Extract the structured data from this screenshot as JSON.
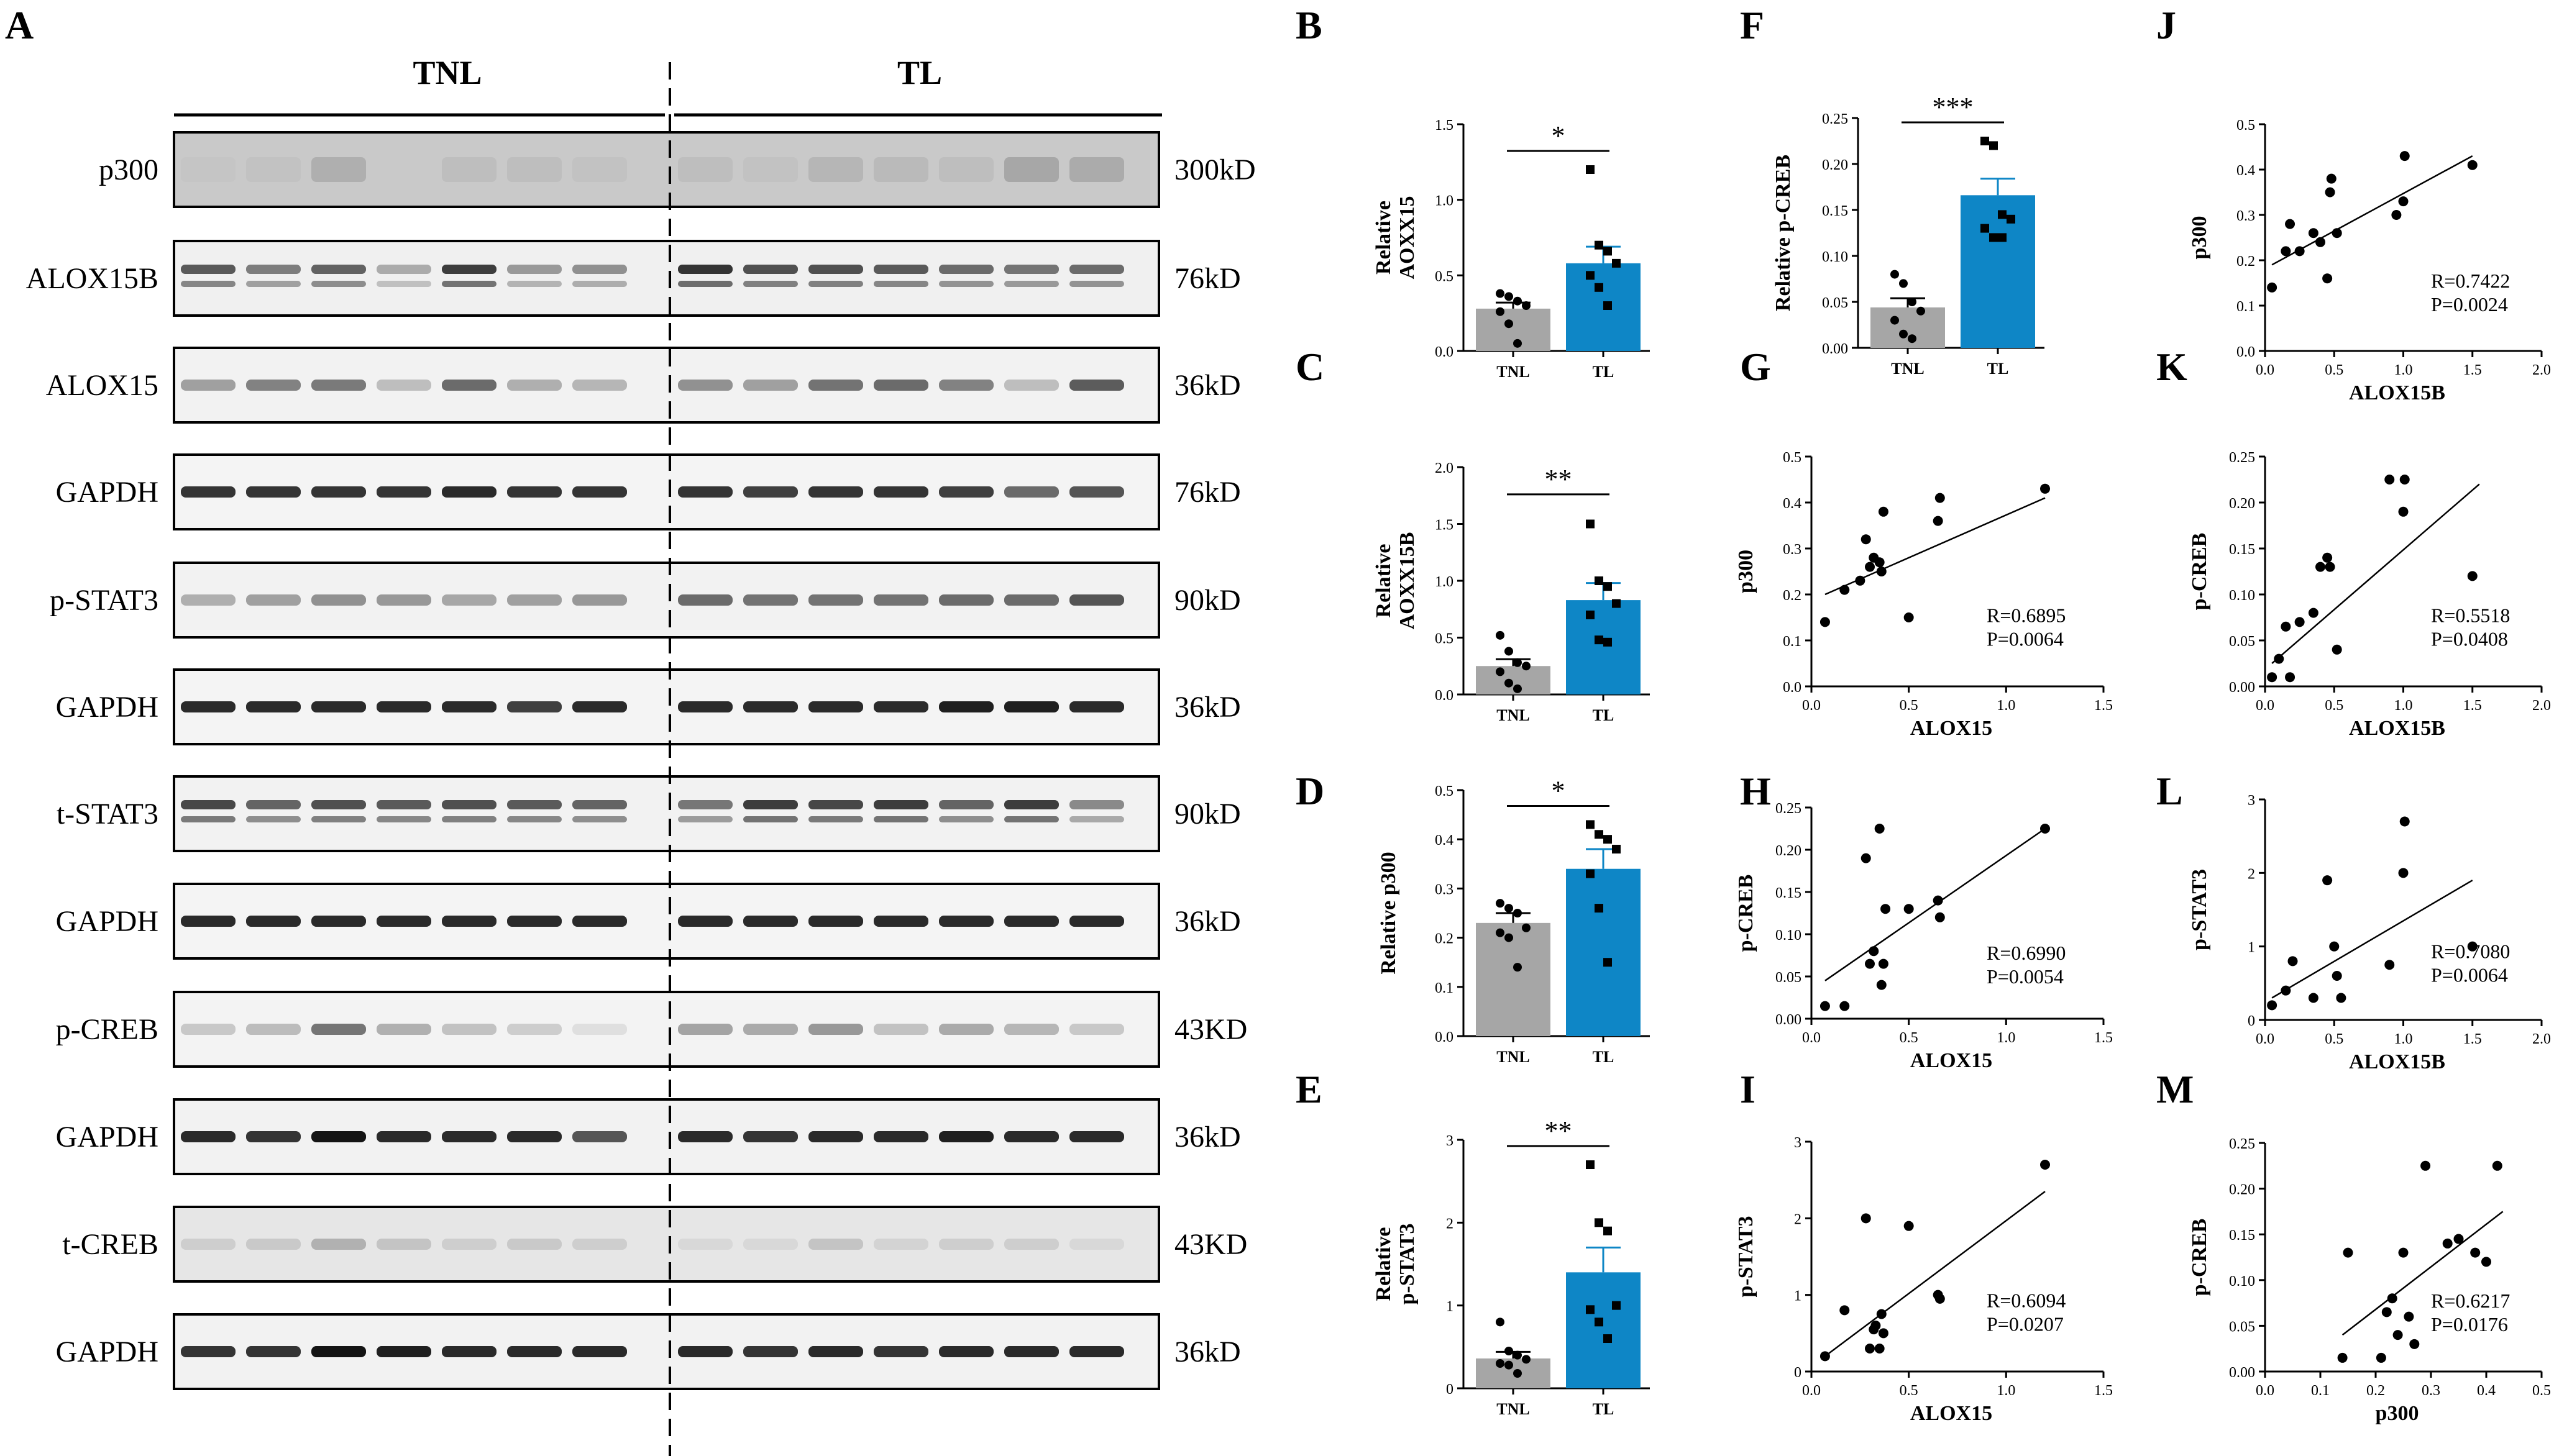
{
  "panel_A": {
    "letter": "A",
    "groups": [
      "TNL",
      "TL"
    ],
    "blots": [
      {
        "label": "p300",
        "kd": "300kD"
      },
      {
        "label": "ALOX15B",
        "kd": "76kD"
      },
      {
        "label": "ALOX15",
        "kd": "36kD"
      },
      {
        "label": "GAPDH",
        "kd": "76kD"
      },
      {
        "label": "p-STAT3",
        "kd": "90kD"
      },
      {
        "label": "GAPDH",
        "kd": "36kD"
      },
      {
        "label": "t-STAT3",
        "kd": "90kD"
      },
      {
        "label": "GAPDH",
        "kd": "36kD"
      },
      {
        "label": "p-CREB",
        "kd": "43KD"
      },
      {
        "label": "GAPDH",
        "kd": "36kD"
      },
      {
        "label": "t-CREB",
        "kd": "43KD"
      },
      {
        "label": "GAPDH",
        "kd": "36kD"
      }
    ]
  },
  "colors": {
    "tnl_bar": "#A6A6A6",
    "tl_bar": "#0E86C6",
    "tl_err": "#0E86C6",
    "tnl_err": "#000000"
  },
  "chart_data": [
    {
      "panel": "B",
      "type": "bar",
      "ylabel": "Relative AOXX15",
      "categories": [
        "TNL",
        "TL"
      ],
      "values": [
        0.28,
        0.58
      ],
      "errors": [
        0.04,
        0.11
      ],
      "ylim": [
        0,
        1.5
      ],
      "yticks": [
        0.0,
        0.5,
        1.0,
        1.5
      ],
      "significance": "*",
      "points": [
        [
          0.38,
          0.36,
          0.33,
          0.3,
          0.26,
          0.18,
          0.05
        ],
        [
          1.2,
          0.7,
          0.66,
          0.58,
          0.5,
          0.42,
          0.3
        ]
      ]
    },
    {
      "panel": "C",
      "type": "bar",
      "ylabel": "Relative AOXX15B",
      "categories": [
        "TNL",
        "TL"
      ],
      "values": [
        0.25,
        0.83
      ],
      "errors": [
        0.06,
        0.15
      ],
      "ylim": [
        0,
        2.0
      ],
      "yticks": [
        0.0,
        0.5,
        1.0,
        1.5,
        2.0
      ],
      "significance": "**",
      "points": [
        [
          0.52,
          0.38,
          0.28,
          0.25,
          0.2,
          0.1,
          0.05
        ],
        [
          1.5,
          1.0,
          0.95,
          0.8,
          0.7,
          0.48,
          0.46
        ]
      ]
    },
    {
      "panel": "D",
      "type": "bar",
      "ylabel": "Relative p300",
      "categories": [
        "TNL",
        "TL"
      ],
      "values": [
        0.23,
        0.34
      ],
      "errors": [
        0.02,
        0.04
      ],
      "ylim": [
        0,
        0.5
      ],
      "yticks": [
        0.0,
        0.1,
        0.2,
        0.3,
        0.4,
        0.5
      ],
      "significance": "*",
      "points": [
        [
          0.27,
          0.26,
          0.25,
          0.22,
          0.21,
          0.2,
          0.14
        ],
        [
          0.43,
          0.41,
          0.4,
          0.38,
          0.33,
          0.26,
          0.15
        ]
      ]
    },
    {
      "panel": "E",
      "type": "bar",
      "ylabel": "Relative p-STAT3",
      "categories": [
        "TNL",
        "TL"
      ],
      "values": [
        0.36,
        1.4
      ],
      "errors": [
        0.08,
        0.3
      ],
      "ylim": [
        0,
        3
      ],
      "yticks": [
        0,
        1,
        2,
        3
      ],
      "significance": "**",
      "points": [
        [
          0.8,
          0.45,
          0.4,
          0.35,
          0.3,
          0.28,
          0.18
        ],
        [
          2.7,
          2.0,
          1.9,
          1.0,
          0.95,
          0.8,
          0.6
        ]
      ]
    },
    {
      "panel": "F",
      "type": "bar",
      "ylabel": "Relative p-CREB",
      "categories": [
        "TNL",
        "TL"
      ],
      "values": [
        0.044,
        0.166
      ],
      "errors": [
        0.01,
        0.018
      ],
      "ylim": [
        0,
        0.25
      ],
      "yticks": [
        0.0,
        0.05,
        0.1,
        0.15,
        0.2,
        0.25
      ],
      "significance": "***",
      "points": [
        [
          0.08,
          0.07,
          0.05,
          0.04,
          0.03,
          0.015,
          0.01
        ],
        [
          0.225,
          0.22,
          0.145,
          0.14,
          0.13,
          0.12,
          0.12
        ]
      ]
    },
    {
      "panel": "G",
      "type": "scatter",
      "xlabel": "ALOX15",
      "ylabel": "p300",
      "xlim": [
        0,
        1.5
      ],
      "ylim": [
        0,
        0.5
      ],
      "xticks": [
        0.0,
        0.5,
        1.0,
        1.5
      ],
      "yticks": [
        0.0,
        0.1,
        0.2,
        0.3,
        0.4,
        0.5
      ],
      "x": [
        0.07,
        0.17,
        0.25,
        0.28,
        0.3,
        0.32,
        0.35,
        0.36,
        0.37,
        0.5,
        0.65,
        0.66,
        1.2
      ],
      "y": [
        0.14,
        0.21,
        0.23,
        0.32,
        0.26,
        0.28,
        0.27,
        0.25,
        0.38,
        0.15,
        0.36,
        0.41,
        0.43
      ],
      "fit": [
        [
          0.07,
          0.2
        ],
        [
          1.2,
          0.41
        ]
      ],
      "stats": [
        "R=0.6895",
        "P=0.0064"
      ]
    },
    {
      "panel": "H",
      "type": "scatter",
      "xlabel": "ALOX15",
      "ylabel": "p-CREB",
      "xlim": [
        0,
        1.5
      ],
      "ylim": [
        0,
        0.25
      ],
      "xticks": [
        0.0,
        0.5,
        1.0,
        1.5
      ],
      "yticks": [
        0.0,
        0.05,
        0.1,
        0.15,
        0.2,
        0.25
      ],
      "x": [
        0.07,
        0.17,
        0.28,
        0.3,
        0.32,
        0.35,
        0.36,
        0.37,
        0.38,
        0.5,
        0.65,
        0.66,
        1.2
      ],
      "y": [
        0.015,
        0.015,
        0.19,
        0.065,
        0.08,
        0.225,
        0.04,
        0.065,
        0.13,
        0.13,
        0.14,
        0.12,
        0.225
      ],
      "fit": [
        [
          0.07,
          0.045
        ],
        [
          1.2,
          0.225
        ]
      ],
      "stats": [
        "R=0.6990",
        "P=0.0054"
      ]
    },
    {
      "panel": "I",
      "type": "scatter",
      "xlabel": "ALOX15",
      "ylabel": "p-STAT3",
      "xlim": [
        0,
        1.5
      ],
      "ylim": [
        0,
        3
      ],
      "xticks": [
        0.0,
        0.5,
        1.0,
        1.5
      ],
      "yticks": [
        0,
        1,
        2,
        3
      ],
      "x": [
        0.07,
        0.17,
        0.28,
        0.3,
        0.32,
        0.33,
        0.35,
        0.36,
        0.37,
        0.5,
        0.65,
        0.66,
        1.2
      ],
      "y": [
        0.2,
        0.8,
        2.0,
        0.3,
        0.55,
        0.6,
        0.3,
        0.75,
        0.5,
        1.9,
        1.0,
        0.95,
        2.7
      ],
      "fit": [
        [
          0.07,
          0.2
        ],
        [
          1.2,
          2.35
        ]
      ],
      "stats": [
        "R=0.6094",
        "P=0.0207"
      ]
    },
    {
      "panel": "J",
      "type": "scatter",
      "xlabel": "ALOX15B",
      "ylabel": "p300",
      "xlim": [
        0,
        2.0
      ],
      "ylim": [
        0,
        0.5
      ],
      "xticks": [
        0.0,
        0.5,
        1.0,
        1.5,
        2.0
      ],
      "yticks": [
        0.0,
        0.1,
        0.2,
        0.3,
        0.4,
        0.5
      ],
      "x": [
        0.05,
        0.15,
        0.18,
        0.25,
        0.35,
        0.4,
        0.45,
        0.47,
        0.48,
        0.52,
        0.95,
        1.0,
        1.01,
        1.5
      ],
      "y": [
        0.14,
        0.22,
        0.28,
        0.22,
        0.26,
        0.24,
        0.16,
        0.35,
        0.38,
        0.26,
        0.3,
        0.33,
        0.43,
        0.41
      ],
      "fit": [
        [
          0.05,
          0.19
        ],
        [
          1.5,
          0.43
        ]
      ],
      "stats": [
        "R=0.7422",
        "P=0.0024"
      ]
    },
    {
      "panel": "K",
      "type": "scatter",
      "xlabel": "ALOX15B",
      "ylabel": "p-CREB",
      "xlim": [
        0,
        2.0
      ],
      "ylim": [
        0,
        0.25
      ],
      "xticks": [
        0.0,
        0.5,
        1.0,
        1.5,
        2.0
      ],
      "yticks": [
        0.0,
        0.05,
        0.1,
        0.15,
        0.2,
        0.25
      ],
      "x": [
        0.05,
        0.1,
        0.15,
        0.18,
        0.25,
        0.35,
        0.4,
        0.45,
        0.47,
        0.52,
        0.9,
        1.0,
        1.01,
        1.5
      ],
      "y": [
        0.01,
        0.03,
        0.065,
        0.01,
        0.07,
        0.08,
        0.13,
        0.14,
        0.13,
        0.04,
        0.225,
        0.19,
        0.225,
        0.12
      ],
      "fit": [
        [
          0.05,
          0.025
        ],
        [
          1.55,
          0.22
        ]
      ],
      "stats": [
        "R=0.5518",
        "P=0.0408"
      ]
    },
    {
      "panel": "L",
      "type": "scatter",
      "xlabel": "ALOX15B",
      "ylabel": "p-STAT3",
      "xlim": [
        0,
        2.0
      ],
      "ylim": [
        0,
        3
      ],
      "xticks": [
        0.0,
        0.5,
        1.0,
        1.5,
        2.0
      ],
      "yticks": [
        0,
        1,
        2,
        3
      ],
      "x": [
        0.05,
        0.15,
        0.2,
        0.35,
        0.45,
        0.5,
        0.52,
        0.55,
        0.9,
        1.0,
        1.01,
        1.5
      ],
      "y": [
        0.2,
        0.4,
        0.8,
        0.3,
        1.9,
        1.0,
        0.6,
        0.3,
        0.75,
        2.0,
        2.7,
        1.0
      ],
      "fit": [
        [
          0.05,
          0.3
        ],
        [
          1.5,
          1.9
        ]
      ],
      "stats": [
        "R=0.7080",
        "P=0.0064"
      ]
    },
    {
      "panel": "M",
      "type": "scatter",
      "xlabel": "p300",
      "ylabel": "p-CREB",
      "xlim": [
        0,
        0.5
      ],
      "ylim": [
        0,
        0.25
      ],
      "xticks": [
        0.0,
        0.1,
        0.2,
        0.3,
        0.4,
        0.5
      ],
      "yticks": [
        0.0,
        0.05,
        0.1,
        0.15,
        0.2,
        0.25
      ],
      "x": [
        0.14,
        0.15,
        0.21,
        0.22,
        0.23,
        0.24,
        0.25,
        0.26,
        0.27,
        0.29,
        0.33,
        0.35,
        0.38,
        0.4,
        0.42
      ],
      "y": [
        0.015,
        0.13,
        0.015,
        0.065,
        0.08,
        0.04,
        0.13,
        0.06,
        0.03,
        0.225,
        0.14,
        0.145,
        0.13,
        0.12,
        0.225
      ],
      "fit": [
        [
          0.14,
          0.04
        ],
        [
          0.43,
          0.175
        ]
      ],
      "stats": [
        "R=0.6217",
        "P=0.0176"
      ]
    }
  ]
}
